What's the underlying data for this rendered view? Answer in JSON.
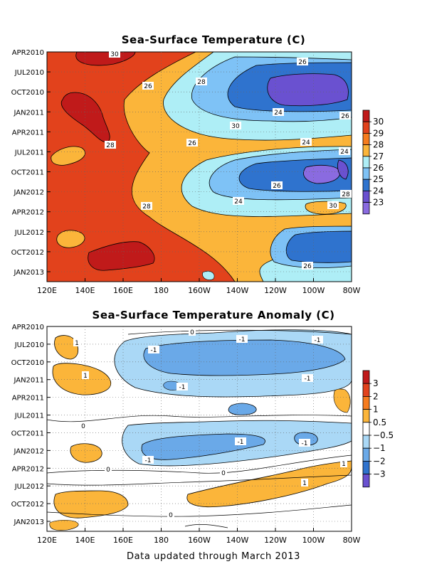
{
  "chart_data": [
    {
      "type": "heatmap",
      "title": "Sea-Surface Temperature (C)",
      "xlabel": "",
      "ylabel": "",
      "x_ticks": [
        "120E",
        "140E",
        "160E",
        "180",
        "160W",
        "140W",
        "120W",
        "100W",
        "80W"
      ],
      "y_ticks": [
        "APR2010",
        "JUL2010",
        "OCT2010",
        "JAN2011",
        "APR2011",
        "JUL2011",
        "OCT2011",
        "JAN2012",
        "APR2012",
        "JUL2012",
        "OCT2012",
        "JAN2013"
      ],
      "colorbar": {
        "labels": [
          "30",
          "29",
          "28",
          "27",
          "26",
          "25",
          "24",
          "23"
        ],
        "colors": [
          "#c01a1a",
          "#e2421c",
          "#f67c1e",
          "#fbb53a",
          "#aeeef6",
          "#7ec2f6",
          "#2f73ce",
          "#6a51d0",
          "#8a6be0"
        ]
      },
      "contour_labels": [
        "30",
        "26",
        "28",
        "26",
        "24",
        "26",
        "30",
        "28",
        "26",
        "24",
        "24",
        "26",
        "28",
        "28",
        "24",
        "30",
        "26"
      ]
    },
    {
      "type": "heatmap",
      "title": "Sea-Surface Temperature Anomaly (C)",
      "xlabel": "",
      "ylabel": "",
      "x_ticks": [
        "120E",
        "140E",
        "160E",
        "180",
        "160W",
        "140W",
        "120W",
        "100W",
        "80W"
      ],
      "y_ticks": [
        "APR2010",
        "JUL2010",
        "OCT2010",
        "JAN2011",
        "APR2011",
        "JUL2011",
        "OCT2011",
        "JAN2012",
        "APR2012",
        "JUL2012",
        "OCT2012",
        "JAN2013"
      ],
      "colorbar": {
        "labels": [
          "3",
          "2",
          "1",
          "0.5",
          "−0.5",
          "−1",
          "−2",
          "−3"
        ],
        "colors": [
          "#c01a1a",
          "#e2421c",
          "#f67c1e",
          "#fbb53a",
          "#ffffff",
          "#aad8f6",
          "#6aa9e8",
          "#2f73ce",
          "#6a51d0"
        ]
      },
      "contour_labels": [
        "-1",
        "0",
        "1",
        "1",
        "-1",
        "-1",
        "-1",
        "0",
        "0",
        "-1",
        "-1",
        "-1",
        "1",
        "1",
        "0",
        "0",
        "-1"
      ]
    }
  ],
  "footer": "Data updated through March 2013"
}
